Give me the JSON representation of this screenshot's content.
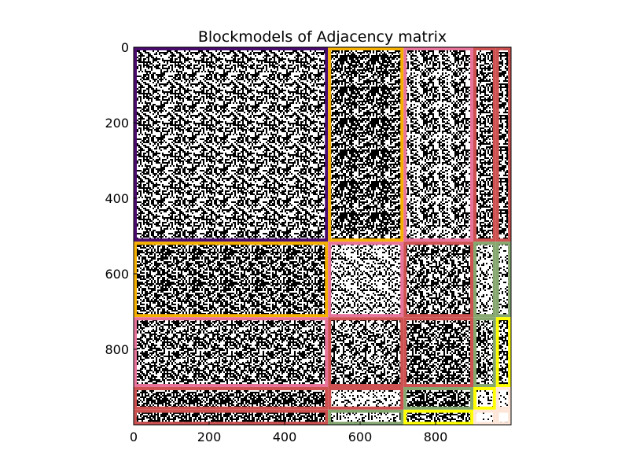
{
  "chart_data": {
    "type": "heatmap",
    "title": "Blockmodels of Adjacency matrix",
    "xlabel": "",
    "ylabel": "",
    "matrix_size": 1000,
    "xlim": [
      0,
      1000
    ],
    "ylim": [
      1000,
      0
    ],
    "x_ticks": [
      0,
      200,
      400,
      600,
      800
    ],
    "y_ticks": [
      0,
      200,
      400,
      600,
      800
    ],
    "x_tick_labels": [
      "0",
      "200",
      "400",
      "600",
      "800"
    ],
    "y_tick_labels": [
      "0",
      "200",
      "400",
      "600",
      "800"
    ],
    "grid": false,
    "block_boundaries": [
      0,
      515,
      715,
      900,
      960,
      1000
    ],
    "blocks": [
      {
        "row": 0,
        "col": 0,
        "density": 0.48,
        "color": "#4b0b6e"
      },
      {
        "row": 0,
        "col": 1,
        "density": 0.62,
        "color": "#f6b100"
      },
      {
        "row": 0,
        "col": 2,
        "density": 0.45,
        "color": "#e8739a"
      },
      {
        "row": 0,
        "col": 3,
        "density": 0.6,
        "color": "#cd5150"
      },
      {
        "row": 0,
        "col": 4,
        "density": 0.55,
        "color": "#cd5150"
      },
      {
        "row": 1,
        "col": 0,
        "density": 0.62,
        "color": "#f6b100"
      },
      {
        "row": 1,
        "col": 1,
        "density": 0.38,
        "color": "#e8739a"
      },
      {
        "row": 1,
        "col": 2,
        "density": 0.5,
        "color": "#cd5150"
      },
      {
        "row": 1,
        "col": 3,
        "density": 0.3,
        "color": "#86a870"
      },
      {
        "row": 1,
        "col": 4,
        "density": 0.3,
        "color": "#86a870"
      },
      {
        "row": 2,
        "col": 0,
        "density": 0.5,
        "color": "#e8739a"
      },
      {
        "row": 2,
        "col": 1,
        "density": 0.5,
        "color": "#cd5150"
      },
      {
        "row": 2,
        "col": 2,
        "density": 0.58,
        "color": "#cd5150"
      },
      {
        "row": 2,
        "col": 3,
        "density": 0.52,
        "color": "#86a870"
      },
      {
        "row": 2,
        "col": 4,
        "density": 0.52,
        "color": "#ffff00"
      },
      {
        "row": 3,
        "col": 0,
        "density": 0.62,
        "color": "#cd5150"
      },
      {
        "row": 3,
        "col": 1,
        "density": 0.2,
        "color": "#cd5150"
      },
      {
        "row": 3,
        "col": 2,
        "density": 0.6,
        "color": "#86a870"
      },
      {
        "row": 3,
        "col": 3,
        "density": 0.28,
        "color": "#ffff00"
      },
      {
        "row": 3,
        "col": 4,
        "density": 0.1,
        "color": "#fde6d8"
      },
      {
        "row": 4,
        "col": 0,
        "density": 0.62,
        "color": "#cd5150"
      },
      {
        "row": 4,
        "col": 1,
        "density": 0.2,
        "color": "#86a870"
      },
      {
        "row": 4,
        "col": 2,
        "density": 0.6,
        "color": "#ffff00"
      },
      {
        "row": 4,
        "col": 3,
        "density": 0.1,
        "color": "#fde6d8"
      },
      {
        "row": 4,
        "col": 4,
        "density": 0.1,
        "color": "#fde6d8"
      }
    ]
  }
}
